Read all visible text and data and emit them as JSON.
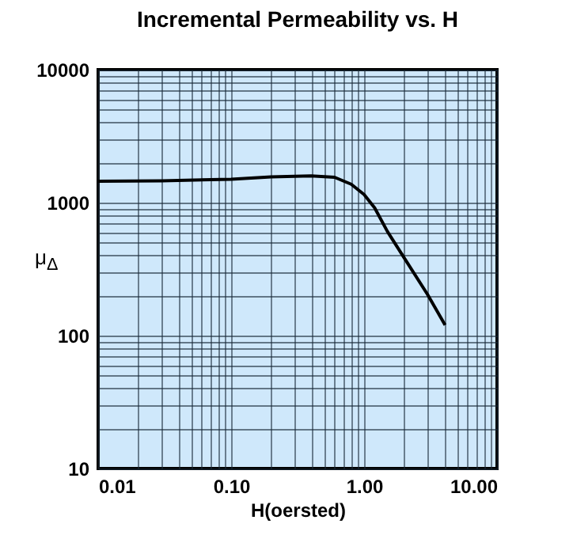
{
  "chart_data": {
    "type": "line",
    "title": "Incremental Permeability vs. H",
    "xlabel": "H(oersted)",
    "ylabel": "μ$_{Δ}$",
    "log": "xy",
    "grid": true,
    "x": [
      0.01,
      0.03,
      0.1,
      0.2,
      0.4,
      0.6,
      0.8,
      1.0,
      1.2,
      1.5,
      2,
      3,
      4.07
    ],
    "series": [
      {
        "color": "#000000",
        "values": [
          1450,
          1460,
          1500,
          1560,
          1590,
          1550,
          1375,
          1150,
          915,
          605,
          385,
          204,
          120
        ]
      }
    ],
    "xlim": [
      0.01,
      10
    ],
    "ylim": [
      10,
      10000
    ],
    "xticks": [
      {
        "value": 0.01,
        "label": "0.01"
      },
      {
        "value": 0.1,
        "label": "0.10"
      },
      {
        "value": 1,
        "label": "1.00"
      },
      {
        "value": 10,
        "label": "10.00"
      }
    ],
    "yticks": [
      10,
      100,
      1000,
      10000
    ]
  }
}
